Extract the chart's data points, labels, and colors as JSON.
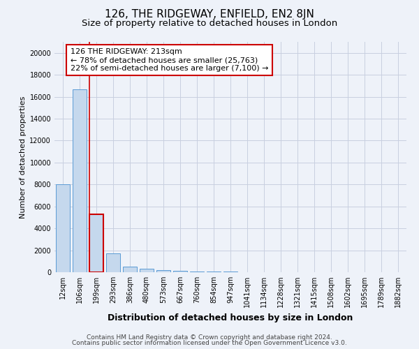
{
  "title": "126, THE RIDGEWAY, ENFIELD, EN2 8JN",
  "subtitle": "Size of property relative to detached houses in London",
  "xlabel": "Distribution of detached houses by size in London",
  "ylabel": "Number of detached properties",
  "footnote1": "Contains HM Land Registry data © Crown copyright and database right 2024.",
  "footnote2": "Contains public sector information licensed under the Open Government Licence v3.0.",
  "categories": [
    "12sqm",
    "106sqm",
    "199sqm",
    "293sqm",
    "386sqm",
    "480sqm",
    "573sqm",
    "667sqm",
    "760sqm",
    "854sqm",
    "947sqm",
    "1041sqm",
    "1134sqm",
    "1228sqm",
    "1321sqm",
    "1415sqm",
    "1508sqm",
    "1602sqm",
    "1695sqm",
    "1789sqm",
    "1882sqm"
  ],
  "values": [
    8050,
    16700,
    5300,
    1700,
    500,
    300,
    200,
    130,
    90,
    60,
    40,
    25,
    15,
    10,
    8,
    5,
    4,
    3,
    2,
    2,
    1
  ],
  "bar_color": "#c5d8ed",
  "bar_edge_color": "#5b9bd5",
  "highlighted_bar_index": 2,
  "highlight_color": "#c5d8ed",
  "highlight_edge_color": "#cc0000",
  "annotation_line1": "126 THE RIDGEWAY: 213sqm",
  "annotation_line2": "← 78% of detached houses are smaller (25,763)",
  "annotation_line3": "22% of semi-detached houses are larger (7,100) →",
  "annotation_box_edge_color": "#cc0000",
  "ylim": [
    0,
    21000
  ],
  "yticks": [
    0,
    2000,
    4000,
    6000,
    8000,
    10000,
    12000,
    14000,
    16000,
    18000,
    20000
  ],
  "background_color": "#eef2f9",
  "plot_background": "#eef2f9",
  "grid_color": "#c8cfe0",
  "title_fontsize": 11,
  "subtitle_fontsize": 9.5,
  "xlabel_fontsize": 9,
  "ylabel_fontsize": 8,
  "tick_fontsize": 7,
  "annotation_fontsize": 8,
  "footnote_fontsize": 6.5
}
